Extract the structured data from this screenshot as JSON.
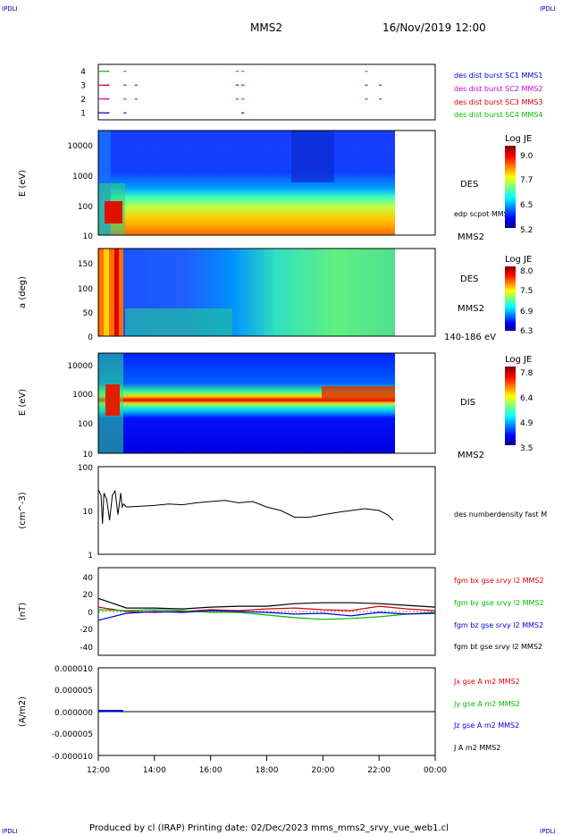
{
  "header": {
    "corner_tl": "IPDLI",
    "corner_tr": "IPDLI",
    "corner_bl": "IPDLI",
    "corner_br": "IPDLI",
    "title": "MMS2",
    "datetime": "16/Nov/2019 12:00"
  },
  "footer": {
    "text": "Produced by cl (IRAP)   Printing date: 02/Dec/2023   mms_mms2_srvy_vue_web1.cl"
  },
  "time_axis": {
    "labels": [
      "12:00",
      "14:00",
      "16:00",
      "18:00",
      "20:00",
      "22:00",
      "00:00"
    ],
    "hours": [
      12,
      14,
      16,
      18,
      20,
      22,
      24
    ]
  },
  "colors": {
    "c1": "#0000cc",
    "c2": "#cc00cc",
    "c3": "#cc0000",
    "c4": "#00bb00",
    "red": "#dd0000",
    "green": "#00bb00",
    "blue": "#0000dd",
    "black": "#000000"
  },
  "chart_data": [
    {
      "type": "line",
      "name": "burst",
      "ylim": [
        0.5,
        4.5
      ],
      "ytick_labels": [
        "1",
        "2",
        "3",
        "4"
      ],
      "legend": [
        "des dist burst SC1 MMS1",
        "des dist burst SC2 MMS2",
        "des dist burst SC3 MMS3",
        "des dist burst SC4 MMS4"
      ],
      "series": [
        {
          "y": 1,
          "t": [
            12.0,
            12.3,
            12.9,
            17.1
          ]
        },
        {
          "y": 2,
          "t": [
            12.0,
            12.3,
            12.9,
            13.3,
            16.9,
            17.1,
            21.5,
            22.0
          ]
        },
        {
          "y": 3,
          "t": [
            12.0,
            12.3,
            12.9,
            13.3,
            16.9,
            17.1,
            21.5,
            22.0
          ]
        },
        {
          "y": 4,
          "t": [
            12.0,
            12.3,
            12.9,
            16.9,
            17.1,
            21.5
          ]
        }
      ]
    },
    {
      "type": "heatmap",
      "name": "des-energy",
      "ylabel": "E (eV)",
      "yticks": [
        "10",
        "100",
        "1000",
        "10000"
      ],
      "side_label": "DES",
      "overlay_label": "edp scpot MMS2",
      "sat_label": "MMS2",
      "colorbar": {
        "title": "Log JE",
        "ticks": [
          "9.0",
          "7.7",
          "6.5",
          "5.2"
        ]
      }
    },
    {
      "type": "heatmap",
      "name": "des-pitch",
      "ylabel": "a (deg)",
      "yticks": [
        "0",
        "50",
        "100",
        "150"
      ],
      "ylim": [
        0,
        180
      ],
      "side_label": "DES",
      "sat_label": "MMS2",
      "energy_label": "140-186 eV",
      "colorbar": {
        "title": "Log JE",
        "ticks": [
          "8.0",
          "7.5",
          "6.9",
          "6.3"
        ]
      }
    },
    {
      "type": "heatmap",
      "name": "dis-energy",
      "ylabel": "E (eV)",
      "yticks": [
        "10",
        "100",
        "1000",
        "10000"
      ],
      "side_label": "DIS",
      "sat_label": "MMS2",
      "colorbar": {
        "title": "Log JE",
        "ticks": [
          "7.8",
          "6.4",
          "4.9",
          "3.5"
        ]
      }
    },
    {
      "type": "line",
      "name": "density",
      "ylabel": "(cm^-3)",
      "yticks": [
        "1",
        "10",
        "100"
      ],
      "legend": [
        "des numberdensity fast M"
      ],
      "series": [
        {
          "t": [
            12.0,
            12.1,
            12.15,
            12.2,
            12.3,
            12.4,
            12.5,
            12.6,
            12.7,
            12.8,
            12.85,
            12.9,
            13.0,
            13.5,
            14.0,
            14.5,
            15.0,
            15.5,
            16.0,
            16.5,
            17.0,
            17.5,
            18.0,
            18.5,
            19.0,
            19.5,
            20.0,
            20.5,
            21.0,
            21.5,
            22.0,
            22.3,
            22.5
          ],
          "v": [
            30,
            22,
            5,
            25,
            18,
            6,
            22,
            28,
            8,
            25,
            12,
            14,
            12,
            12.5,
            13,
            14,
            13.5,
            15,
            16,
            17,
            15,
            16,
            12,
            10,
            7,
            7,
            8,
            9,
            10,
            11,
            10,
            8,
            6
          ]
        }
      ]
    },
    {
      "type": "line",
      "name": "fgm",
      "ylabel": "(nT)",
      "yticks": [
        "-40",
        "-20",
        "0",
        "20",
        "40"
      ],
      "ylim": [
        -50,
        50
      ],
      "legend": [
        "fgm bx gse srvy l2 MMS2",
        "fgm by gse srvy l2 MMS2",
        "fgm bz gse srvy l2 MMS2",
        "fgm bt gse srvy l2 MMS2"
      ],
      "series": [
        {
          "name": "bx",
          "t": [
            12,
            13,
            14,
            15,
            16,
            17,
            18,
            19,
            20,
            21,
            22,
            23,
            24
          ],
          "v": [
            5,
            0,
            -1,
            0,
            2,
            1,
            3,
            4,
            2,
            1,
            6,
            3,
            1
          ]
        },
        {
          "name": "by",
          "t": [
            12,
            13,
            14,
            15,
            16,
            17,
            18,
            19,
            20,
            21,
            22,
            23,
            24
          ],
          "v": [
            2,
            1,
            2,
            1,
            -1,
            -1,
            -4,
            -7,
            -9,
            -8,
            -6,
            -3,
            -1
          ]
        },
        {
          "name": "bz",
          "t": [
            12,
            13,
            14,
            15,
            16,
            17,
            18,
            19,
            20,
            21,
            22,
            23,
            24
          ],
          "v": [
            -10,
            -2,
            0,
            -1,
            1,
            0,
            -1,
            -3,
            -2,
            -5,
            -1,
            -3,
            -2
          ]
        },
        {
          "name": "bt",
          "t": [
            12,
            13,
            14,
            15,
            16,
            17,
            18,
            19,
            20,
            21,
            22,
            23,
            24
          ],
          "v": [
            15,
            4,
            4,
            3,
            5,
            6,
            6,
            9,
            10,
            10,
            9,
            7,
            5
          ]
        }
      ]
    },
    {
      "type": "line",
      "name": "current",
      "ylabel": "(A/m2)",
      "yticks": [
        "-0.000010",
        "-0.000005",
        "0.000000",
        "0.000005",
        "0.000010"
      ],
      "legend": [
        "Jx gse A m2 MMS2",
        "Jy gse A m2 MMS2",
        "Jz gse A m2 MMS2",
        "J A m2 MMS2"
      ]
    }
  ]
}
